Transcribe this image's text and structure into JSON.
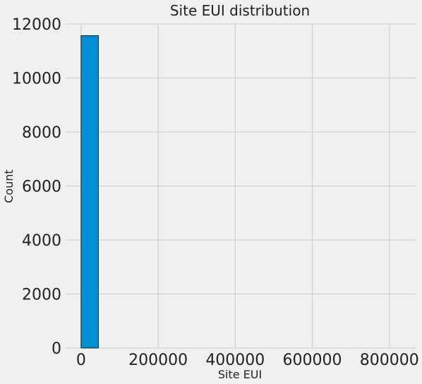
{
  "chart_data": {
    "type": "bar",
    "title": "Site EUI distribution",
    "xlabel": "Site EUI",
    "ylabel": "Count",
    "xlim": [
      -40000,
      870000
    ],
    "ylim": [
      0,
      12000
    ],
    "x_ticks": [
      0,
      200000,
      400000,
      600000,
      800000
    ],
    "x_tick_labels": [
      "0",
      "200000",
      "400000",
      "600000",
      "800000"
    ],
    "y_ticks": [
      0,
      2000,
      4000,
      6000,
      8000,
      10000,
      12000
    ],
    "y_tick_labels": [
      "0",
      "2000",
      "4000",
      "6000",
      "8000",
      "10000",
      "12000"
    ],
    "grid": true,
    "legend": "none",
    "bins": [
      {
        "x_start": 0,
        "x_end": 45000,
        "count": 11570
      }
    ],
    "colors": {
      "background": "#f0f0f0",
      "bar_fill": "#008fd5",
      "bar_edge": "#000000",
      "grid": "#cbcbcb",
      "text": "#222222"
    }
  }
}
